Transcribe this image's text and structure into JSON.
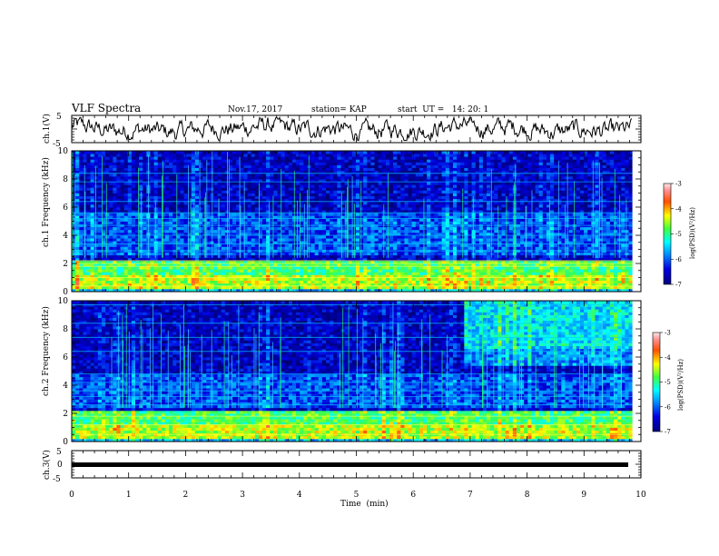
{
  "header": {
    "title": "VLF Spectra",
    "date": "Nov.17, 2017",
    "station": "station= KAP",
    "start_ut": "start  UT =   14: 20: 1"
  },
  "chart_data": {
    "type": "heatmap",
    "x_axis": {
      "label": "Time  (min)",
      "range": [
        0,
        10
      ],
      "ticks": [
        "0",
        "1",
        "2",
        "3",
        "4",
        "5",
        "6",
        "7",
        "8",
        "9",
        "10"
      ],
      "data_end": 9.85
    },
    "panels": [
      {
        "id": "ch1-waveform",
        "type": "line",
        "ylabel": "ch.1(V)",
        "yrange": [
          -5,
          5
        ],
        "yticks": [
          "5",
          "-5"
        ],
        "level": 0,
        "fluctuation": 3
      },
      {
        "id": "ch1-spectrogram",
        "type": "heatmap",
        "ylabel": "ch.1  Frequency (kHz)",
        "yrange": [
          0,
          10
        ],
        "yticks": [
          "0",
          "2",
          "4",
          "6",
          "8",
          "10"
        ],
        "colorbar": {
          "label": "log(PSD)(V²/Hz)",
          "range": [
            -7,
            -3
          ],
          "ticks": [
            "-3",
            "-4",
            "-5",
            "-6",
            "-7"
          ]
        },
        "features": {
          "strong_band_khz": [
            0.3,
            2.2
          ],
          "mid_band_khz": [
            2.6,
            5.6
          ],
          "weak_band_khz": [
            5.8,
            10
          ],
          "vertical_spikes": "impulsive broadband emissions throughout record",
          "harmonic_lines_khz": [
            0.4,
            1.0,
            1.8,
            2.0,
            2.2,
            2.9,
            3.4,
            4.0,
            4.7,
            5.2,
            5.6,
            6.4,
            7.8,
            8.4
          ]
        }
      },
      {
        "id": "ch2-spectrogram",
        "type": "heatmap",
        "ylabel": "ch.2  Frequency (kHz)",
        "yrange": [
          0,
          10
        ],
        "yticks": [
          "0",
          "2",
          "4",
          "6",
          "8",
          "10"
        ],
        "colorbar": {
          "label": "log(PSD)(V²/Hz)",
          "range": [
            -7,
            -3
          ],
          "ticks": [
            "-3",
            "-4",
            "-5",
            "-6",
            "-7"
          ]
        },
        "features": {
          "strong_band_khz": [
            0.3,
            2.2
          ],
          "mid_band_khz": [
            2.5,
            4.8
          ],
          "weak_band_khz": [
            5.0,
            10
          ],
          "enhanced_emission": {
            "start_min": 6.9,
            "end_min": 9.85,
            "freq_khz": [
              5.5,
              10
            ]
          },
          "vertical_spikes": "impulsive broadband emissions throughout record",
          "harmonic_lines_khz": [
            0.5,
            1.2,
            1.8,
            2.6,
            3.2,
            3.6,
            4.2,
            4.8,
            6.4,
            7.4,
            8.4,
            9.7
          ]
        }
      },
      {
        "id": "ch3-waveform",
        "type": "line",
        "ylabel": "ch.3(V)",
        "yrange": [
          -5,
          5
        ],
        "yticks": [
          "5",
          "0",
          "-5"
        ],
        "level": 0,
        "fluctuation": 0
      }
    ]
  }
}
